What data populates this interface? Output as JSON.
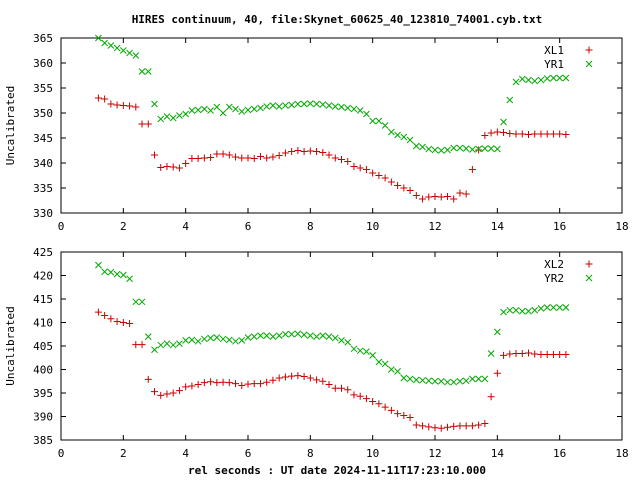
{
  "title": "HIRES continuum, 40, file:Skynet_60625_40_123810_74001.cyb.txt",
  "xlabel": "rel seconds : UT date 2024-11-11T17:23:10.000",
  "colors": {
    "red": "#cc0000",
    "green": "#00aa00"
  },
  "chart_data": [
    {
      "type": "scatter",
      "ylabel": "Uncalibrated",
      "xlim": [
        0,
        18
      ],
      "ylim": [
        330,
        365
      ],
      "xticks": [
        0,
        2,
        4,
        6,
        8,
        10,
        12,
        14,
        16,
        18
      ],
      "yticks": [
        330,
        335,
        340,
        345,
        350,
        355,
        360,
        365
      ],
      "legend_position": "top-right",
      "series": [
        {
          "name": "XL1",
          "marker": "plus",
          "color": "#cc0000",
          "x": [
            1.2,
            1.4,
            1.6,
            1.8,
            2.0,
            2.2,
            2.4,
            2.6,
            2.8,
            3.0,
            3.2,
            3.4,
            3.6,
            3.8,
            4.0,
            4.2,
            4.4,
            4.6,
            4.8,
            5.0,
            5.2,
            5.4,
            5.6,
            5.8,
            6.0,
            6.2,
            6.4,
            6.6,
            6.8,
            7.0,
            7.2,
            7.4,
            7.6,
            7.8,
            8.0,
            8.2,
            8.4,
            8.6,
            8.8,
            9.0,
            9.2,
            9.4,
            9.6,
            9.8,
            10.0,
            10.2,
            10.4,
            10.6,
            10.8,
            11.0,
            11.2,
            11.4,
            11.6,
            11.8,
            12.0,
            12.2,
            12.4,
            12.6,
            12.8,
            13.0,
            13.2,
            13.4,
            13.6,
            13.8,
            14.0,
            14.2,
            14.4,
            14.6,
            14.8,
            15.0,
            15.2,
            15.4,
            15.6,
            15.8,
            16.0,
            16.2
          ],
          "y": [
            353.0,
            352.8,
            351.8,
            351.6,
            351.5,
            351.4,
            351.2,
            347.8,
            347.8,
            341.6,
            339.1,
            339.3,
            339.2,
            339.0,
            339.9,
            340.9,
            340.9,
            341.0,
            341.1,
            341.8,
            341.8,
            341.6,
            341.2,
            341.0,
            341.0,
            340.9,
            341.3,
            341.0,
            341.2,
            341.5,
            342.0,
            342.3,
            342.5,
            342.3,
            342.4,
            342.3,
            342.1,
            341.6,
            341.0,
            340.7,
            340.3,
            339.3,
            339.0,
            338.7,
            338.0,
            337.5,
            337.0,
            336.2,
            335.5,
            335.0,
            334.5,
            333.5,
            332.8,
            333.2,
            333.3,
            333.2,
            333.3,
            332.8,
            334.0,
            333.8,
            338.7,
            342.6,
            345.5,
            346.0,
            346.2,
            346.1,
            345.9,
            345.8,
            345.8,
            345.7,
            345.8,
            345.8,
            345.8,
            345.8,
            345.8,
            345.7
          ]
        },
        {
          "name": "YR1",
          "marker": "cross",
          "color": "#00aa00",
          "x": [
            1.2,
            1.4,
            1.6,
            1.8,
            2.0,
            2.2,
            2.4,
            2.6,
            2.8,
            3.0,
            3.2,
            3.4,
            3.6,
            3.8,
            4.0,
            4.2,
            4.4,
            4.6,
            4.8,
            5.0,
            5.2,
            5.4,
            5.6,
            5.8,
            6.0,
            6.2,
            6.4,
            6.6,
            6.8,
            7.0,
            7.2,
            7.4,
            7.6,
            7.8,
            8.0,
            8.2,
            8.4,
            8.6,
            8.8,
            9.0,
            9.2,
            9.4,
            9.6,
            9.8,
            10.0,
            10.2,
            10.4,
            10.6,
            10.8,
            11.0,
            11.2,
            11.4,
            11.6,
            11.8,
            12.0,
            12.2,
            12.4,
            12.6,
            12.8,
            13.0,
            13.2,
            13.4,
            13.6,
            13.8,
            14.0,
            14.2,
            14.4,
            14.6,
            14.8,
            15.0,
            15.2,
            15.4,
            15.6,
            15.8,
            16.0,
            16.2
          ],
          "y": [
            365.0,
            364.0,
            363.5,
            363.0,
            362.5,
            362.0,
            361.5,
            358.3,
            358.3,
            351.8,
            348.8,
            349.3,
            349.0,
            349.5,
            349.8,
            350.5,
            350.6,
            350.8,
            350.5,
            351.2,
            350.0,
            351.2,
            350.8,
            350.3,
            350.6,
            350.8,
            351.0,
            351.3,
            351.5,
            351.3,
            351.5,
            351.6,
            351.8,
            351.8,
            351.9,
            351.8,
            351.7,
            351.5,
            351.3,
            351.2,
            351.0,
            350.8,
            350.5,
            349.8,
            348.4,
            348.4,
            347.5,
            346.2,
            345.6,
            345.2,
            344.6,
            343.4,
            343.2,
            342.8,
            342.6,
            342.5,
            342.6,
            343.0,
            343.0,
            342.9,
            342.7,
            342.8,
            342.9,
            342.9,
            342.8,
            348.2,
            352.6,
            356.2,
            356.8,
            356.6,
            356.4,
            356.6,
            356.9,
            357.0,
            357.0,
            357.0
          ]
        }
      ]
    },
    {
      "type": "scatter",
      "ylabel": "Uncalibrated",
      "xlim": [
        0,
        18
      ],
      "ylim": [
        385,
        425
      ],
      "xticks": [
        0,
        2,
        4,
        6,
        8,
        10,
        12,
        14,
        16,
        18
      ],
      "yticks": [
        385,
        390,
        395,
        400,
        405,
        410,
        415,
        420,
        425
      ],
      "legend_position": "top-right",
      "series": [
        {
          "name": "XL2",
          "marker": "plus",
          "color": "#cc0000",
          "x": [
            1.2,
            1.4,
            1.6,
            1.8,
            2.0,
            2.2,
            2.4,
            2.6,
            2.8,
            3.0,
            3.2,
            3.4,
            3.6,
            3.8,
            4.0,
            4.2,
            4.4,
            4.6,
            4.8,
            5.0,
            5.2,
            5.4,
            5.6,
            5.8,
            6.0,
            6.2,
            6.4,
            6.6,
            6.8,
            7.0,
            7.2,
            7.4,
            7.6,
            7.8,
            8.0,
            8.2,
            8.4,
            8.6,
            8.8,
            9.0,
            9.2,
            9.4,
            9.6,
            9.8,
            10.0,
            10.2,
            10.4,
            10.6,
            10.8,
            11.0,
            11.2,
            11.4,
            11.6,
            11.8,
            12.0,
            12.2,
            12.4,
            12.6,
            12.8,
            13.0,
            13.2,
            13.4,
            13.6,
            13.8,
            14.0,
            14.2,
            14.4,
            14.6,
            14.8,
            15.0,
            15.2,
            15.4,
            15.6,
            15.8,
            16.0,
            16.2
          ],
          "y": [
            412.2,
            411.5,
            410.8,
            410.2,
            410.0,
            409.8,
            405.3,
            405.3,
            397.9,
            395.3,
            394.5,
            394.8,
            395.0,
            395.5,
            396.3,
            396.5,
            396.8,
            397.2,
            397.4,
            397.2,
            397.3,
            397.2,
            397.0,
            396.6,
            396.9,
            397.0,
            397.0,
            397.3,
            397.7,
            398.2,
            398.4,
            398.6,
            398.7,
            398.5,
            398.2,
            397.8,
            397.5,
            396.8,
            396.0,
            396.0,
            395.7,
            394.6,
            394.3,
            393.8,
            393.2,
            392.7,
            392.0,
            391.3,
            390.6,
            390.2,
            389.8,
            388.2,
            388.0,
            387.8,
            387.6,
            387.5,
            387.7,
            387.9,
            388.0,
            388.0,
            388.0,
            388.2,
            388.5,
            394.2,
            399.2,
            403.0,
            403.3,
            403.4,
            403.4,
            403.5,
            403.3,
            403.2,
            403.2,
            403.2,
            403.2,
            403.2
          ]
        },
        {
          "name": "YR2",
          "marker": "cross",
          "color": "#00aa00",
          "x": [
            1.2,
            1.4,
            1.6,
            1.8,
            2.0,
            2.2,
            2.4,
            2.6,
            2.8,
            3.0,
            3.2,
            3.4,
            3.6,
            3.8,
            4.0,
            4.2,
            4.4,
            4.6,
            4.8,
            5.0,
            5.2,
            5.4,
            5.6,
            5.8,
            6.0,
            6.2,
            6.4,
            6.6,
            6.8,
            7.0,
            7.2,
            7.4,
            7.6,
            7.8,
            8.0,
            8.2,
            8.4,
            8.6,
            8.8,
            9.0,
            9.2,
            9.4,
            9.6,
            9.8,
            10.0,
            10.2,
            10.4,
            10.6,
            10.8,
            11.0,
            11.2,
            11.4,
            11.6,
            11.8,
            12.0,
            12.2,
            12.4,
            12.6,
            12.8,
            13.0,
            13.2,
            13.4,
            13.6,
            13.8,
            14.0,
            14.2,
            14.4,
            14.6,
            14.8,
            15.0,
            15.2,
            15.4,
            15.6,
            15.8,
            16.0,
            16.2
          ],
          "y": [
            422.2,
            420.8,
            420.7,
            420.3,
            420.1,
            419.3,
            414.4,
            414.4,
            407.0,
            404.2,
            405.2,
            405.5,
            405.2,
            405.5,
            406.2,
            406.3,
            406.0,
            406.5,
            406.7,
            406.8,
            406.5,
            406.3,
            406.0,
            406.2,
            406.8,
            407.0,
            407.2,
            407.2,
            407.0,
            407.2,
            407.5,
            407.5,
            407.6,
            407.4,
            407.2,
            407.0,
            407.2,
            407.0,
            406.7,
            406.2,
            405.8,
            404.4,
            404.0,
            403.8,
            403.0,
            401.6,
            401.2,
            400.0,
            399.6,
            398.2,
            398.0,
            397.8,
            397.7,
            397.6,
            397.5,
            397.5,
            397.3,
            397.3,
            397.5,
            397.6,
            398.0,
            398.0,
            398.0,
            403.4,
            408.0,
            412.2,
            412.6,
            412.6,
            412.4,
            412.4,
            412.6,
            413.0,
            413.2,
            413.2,
            413.2,
            413.2
          ]
        }
      ]
    }
  ]
}
